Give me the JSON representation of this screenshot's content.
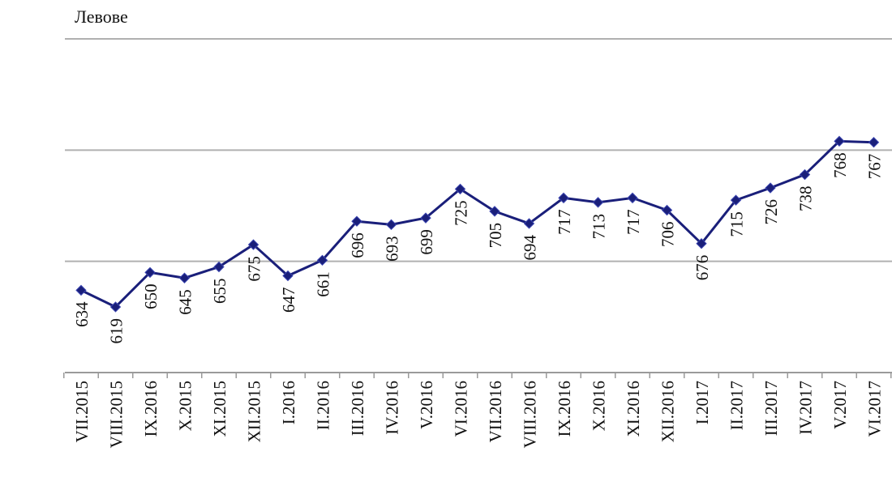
{
  "chart_data": {
    "type": "line",
    "ylabel": "Левове",
    "xlabel": "",
    "title": "",
    "ylim": [
      560,
      860
    ],
    "grid": true,
    "series_color": "#1a1f7a",
    "categories": [
      "VII.2015",
      "VIII.2015",
      "IX.2016",
      "X.2015",
      "XI.2015",
      "XII.2015",
      "I.2016",
      "II.2016",
      "III.2016",
      "IV.2016",
      "V.2016",
      "VI.2016",
      "VII.2016",
      "VIII.2016",
      "IX.2016",
      "X.2016",
      "XI.2016",
      "XII.2016",
      "I.2017",
      "II.2017",
      "III.2017",
      "IV.2017",
      "V.2017",
      "VI.2017"
    ],
    "series": [
      {
        "values": [
          634,
          619,
          650,
          645,
          655,
          675,
          647,
          661,
          696,
          693,
          699,
          725,
          705,
          694,
          717,
          713,
          717,
          706,
          676,
          715,
          726,
          738,
          768,
          767
        ],
        "labels": [
          "634",
          "619",
          "650",
          "645",
          "655",
          "675",
          "647",
          "661",
          "696",
          "693",
          "699",
          "725",
          "705",
          "694",
          "717",
          "713",
          "717",
          "706",
          "676",
          "715",
          "726",
          "738",
          "768",
          "767"
        ]
      }
    ]
  }
}
